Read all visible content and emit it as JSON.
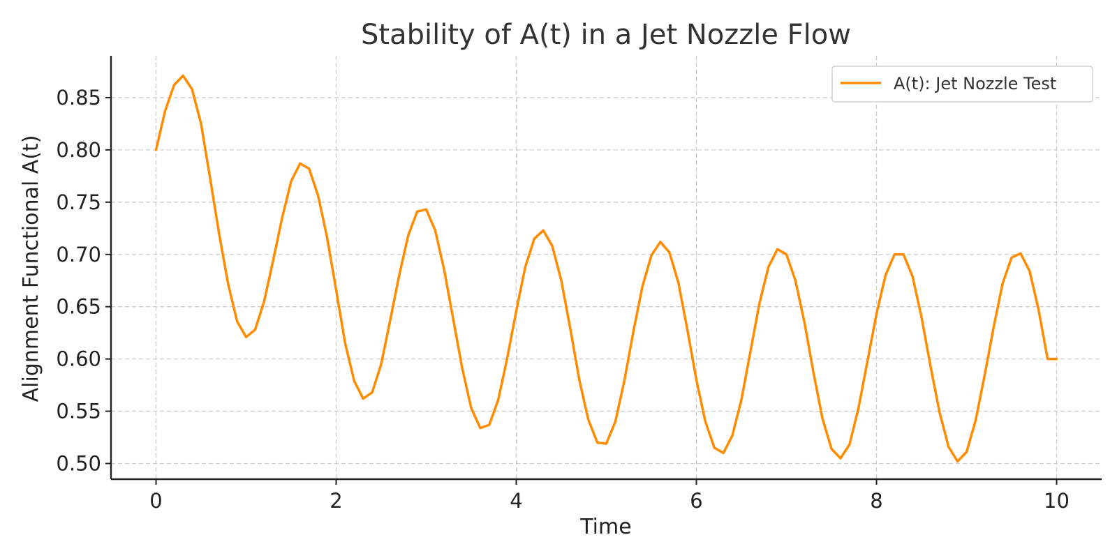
{
  "chart_data": {
    "type": "line",
    "title": "Stability of A(t) in a Jet Nozzle Flow",
    "xlabel": "Time",
    "ylabel": "Alignment Functional A(t)",
    "xlim": [
      -0.5,
      10.5
    ],
    "ylim": [
      0.485,
      0.89
    ],
    "xticks": [
      0,
      2,
      4,
      6,
      8,
      10
    ],
    "xtick_labels": [
      "0",
      "2",
      "4",
      "6",
      "8",
      "10"
    ],
    "yticks": [
      0.5,
      0.55,
      0.6,
      0.65,
      0.7,
      0.75,
      0.8,
      0.85
    ],
    "ytick_labels": [
      "0.50",
      "0.55",
      "0.60",
      "0.65",
      "0.70",
      "0.75",
      "0.80",
      "0.85"
    ],
    "grid": true,
    "legend_position": "top-right",
    "series": [
      {
        "name": "A(t): Jet Nozzle Test",
        "color": "#ff8c00",
        "x": [
          0.0,
          0.1,
          0.2,
          0.3,
          0.4,
          0.5,
          0.6,
          0.7,
          0.8,
          0.9,
          1.0,
          1.1,
          1.2,
          1.3,
          1.4,
          1.5,
          1.6,
          1.7,
          1.8,
          1.9,
          2.0,
          2.1,
          2.2,
          2.3,
          2.4,
          2.5,
          2.6,
          2.7,
          2.8,
          2.9,
          3.0,
          3.1,
          3.2,
          3.3,
          3.4,
          3.5,
          3.6,
          3.7,
          3.8,
          3.9,
          4.0,
          4.1,
          4.2,
          4.3,
          4.4,
          4.5,
          4.6,
          4.7,
          4.8,
          4.9,
          5.0,
          5.1,
          5.2,
          5.3,
          5.4,
          5.5,
          5.6,
          5.7,
          5.8,
          5.9,
          6.0,
          6.1,
          6.2,
          6.3,
          6.4,
          6.5,
          6.6,
          6.7,
          6.8,
          6.9,
          7.0,
          7.1,
          7.2,
          7.3,
          7.4,
          7.5,
          7.6,
          7.7,
          7.8,
          7.9,
          8.0,
          8.1,
          8.2,
          8.3,
          8.4,
          8.5,
          8.6,
          8.7,
          8.8,
          8.9,
          9.0,
          9.1,
          9.2,
          9.3,
          9.4,
          9.5,
          9.6,
          9.7,
          9.8,
          9.9,
          10.0
        ],
        "y": [
          0.8,
          0.837,
          0.862,
          0.871,
          0.858,
          0.825,
          0.773,
          0.72,
          0.672,
          0.636,
          0.621,
          0.628,
          0.655,
          0.694,
          0.735,
          0.77,
          0.787,
          0.782,
          0.756,
          0.716,
          0.666,
          0.615,
          0.579,
          0.562,
          0.568,
          0.595,
          0.637,
          0.68,
          0.718,
          0.741,
          0.743,
          0.723,
          0.685,
          0.638,
          0.591,
          0.553,
          0.534,
          0.537,
          0.561,
          0.601,
          0.646,
          0.688,
          0.715,
          0.723,
          0.708,
          0.675,
          0.629,
          0.58,
          0.542,
          0.52,
          0.519,
          0.54,
          0.579,
          0.626,
          0.669,
          0.699,
          0.712,
          0.702,
          0.673,
          0.628,
          0.58,
          0.54,
          0.515,
          0.51,
          0.527,
          0.561,
          0.607,
          0.653,
          0.688,
          0.705,
          0.7,
          0.675,
          0.635,
          0.587,
          0.543,
          0.514,
          0.505,
          0.518,
          0.553,
          0.598,
          0.643,
          0.68,
          0.7,
          0.7,
          0.679,
          0.64,
          0.593,
          0.549,
          0.516,
          0.502,
          0.511,
          0.541,
          0.584,
          0.63,
          0.672,
          0.697,
          0.701,
          0.684,
          0.647,
          0.6,
          0.6
        ]
      }
    ]
  }
}
